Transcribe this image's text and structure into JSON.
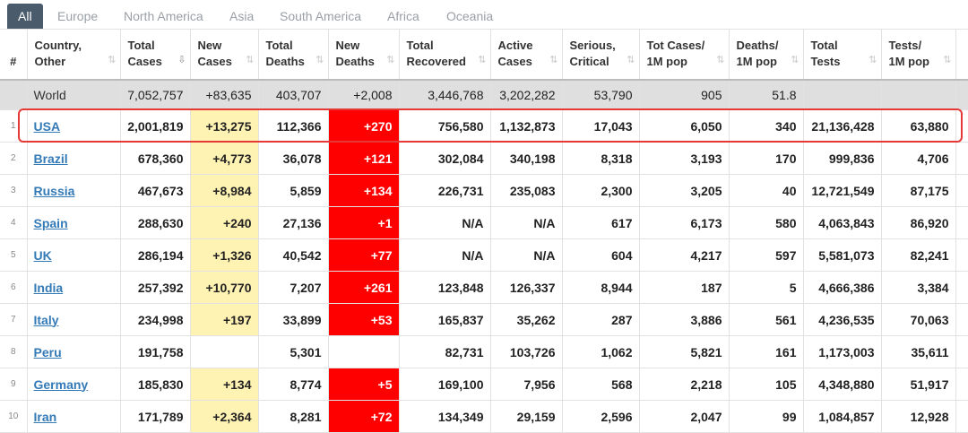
{
  "tabs": [
    "All",
    "Europe",
    "North America",
    "Asia",
    "South America",
    "Africa",
    "Oceania"
  ],
  "headers": [
    [
      "#",
      ""
    ],
    [
      "Country,",
      "Other"
    ],
    [
      "Total",
      "Cases"
    ],
    [
      "New",
      "Cases"
    ],
    [
      "Total",
      "Deaths"
    ],
    [
      "New",
      "Deaths"
    ],
    [
      "Total",
      "Recovered"
    ],
    [
      "Active",
      "Cases"
    ],
    [
      "Serious,",
      "Critical"
    ],
    [
      "Tot Cases/",
      "1M pop"
    ],
    [
      "Deaths/",
      "1M pop"
    ],
    [
      "Total",
      "Tests"
    ],
    [
      "Tests/",
      "1M pop"
    ]
  ],
  "sort_icons": [
    "⇅",
    "⇅",
    "⇩",
    "⇅",
    "⇅",
    "⇅",
    "⇅",
    "⇅",
    "⇅",
    "⇅",
    "⇅",
    "⇅",
    "⇅"
  ],
  "world": [
    "",
    "World",
    "7,052,757",
    "+83,635",
    "403,707",
    "+2,008",
    "3,446,768",
    "3,202,282",
    "53,790",
    "905",
    "51.8",
    "",
    ""
  ],
  "rows": [
    [
      "1",
      "USA",
      "2,001,819",
      "+13,275",
      "112,366",
      "+270",
      "756,580",
      "1,132,873",
      "17,043",
      "6,050",
      "340",
      "21,136,428",
      "63,880"
    ],
    [
      "2",
      "Brazil",
      "678,360",
      "+4,773",
      "36,078",
      "+121",
      "302,084",
      "340,198",
      "8,318",
      "3,193",
      "170",
      "999,836",
      "4,706"
    ],
    [
      "3",
      "Russia",
      "467,673",
      "+8,984",
      "5,859",
      "+134",
      "226,731",
      "235,083",
      "2,300",
      "3,205",
      "40",
      "12,721,549",
      "87,175"
    ],
    [
      "4",
      "Spain",
      "288,630",
      "+240",
      "27,136",
      "+1",
      "N/A",
      "N/A",
      "617",
      "6,173",
      "580",
      "4,063,843",
      "86,920"
    ],
    [
      "5",
      "UK",
      "286,194",
      "+1,326",
      "40,542",
      "+77",
      "N/A",
      "N/A",
      "604",
      "4,217",
      "597",
      "5,581,073",
      "82,241"
    ],
    [
      "6",
      "India",
      "257,392",
      "+10,770",
      "7,207",
      "+261",
      "123,848",
      "126,337",
      "8,944",
      "187",
      "5",
      "4,666,386",
      "3,384"
    ],
    [
      "7",
      "Italy",
      "234,998",
      "+197",
      "33,899",
      "+53",
      "165,837",
      "35,262",
      "287",
      "3,886",
      "561",
      "4,236,535",
      "70,063"
    ],
    [
      "8",
      "Peru",
      "191,758",
      "",
      "5,301",
      "",
      "82,731",
      "103,726",
      "1,062",
      "5,821",
      "161",
      "1,173,003",
      "35,611"
    ],
    [
      "9",
      "Germany",
      "185,830",
      "+134",
      "8,774",
      "+5",
      "169,100",
      "7,956",
      "568",
      "2,218",
      "105",
      "4,348,880",
      "51,917"
    ],
    [
      "10",
      "Iran",
      "171,789",
      "+2,364",
      "8,281",
      "+72",
      "134,349",
      "29,159",
      "2,596",
      "2,047",
      "99",
      "1,084,857",
      "12,928"
    ]
  ]
}
